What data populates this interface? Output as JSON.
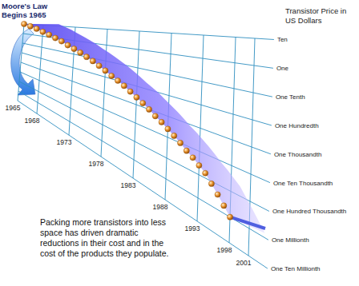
{
  "chart_data": {
    "type": "scatter",
    "title": "Moore's Law Begins 1965",
    "y_label": "Transistor Price in US Dollars",
    "annotation": "Packing more transistors into less space has driven dramatic reductions in their cost and in the cost of the products they populate.",
    "x": [
      1965,
      1966,
      1967,
      1968,
      1969,
      1970,
      1971,
      1972,
      1973,
      1974,
      1975,
      1976,
      1977,
      1978,
      1979,
      1980,
      1981,
      1982,
      1983,
      1984,
      1985,
      1986,
      1987,
      1988,
      1989,
      1990,
      1991,
      1992,
      1993,
      1994,
      1995,
      1996,
      1997,
      1998
    ],
    "values": [
      10,
      6.5,
      4.2,
      2.5,
      1.6,
      1.0,
      0.65,
      0.38,
      0.25,
      0.16,
      0.1,
      0.065,
      0.04,
      0.025,
      0.015,
      0.01,
      0.0065,
      0.004,
      0.0025,
      0.0016,
      0.001,
      0.0006,
      0.0004,
      0.00025,
      0.00016,
      0.0001,
      6e-05,
      4e-05,
      2.5e-05,
      1.6e-05,
      8e-06,
      4e-06,
      2e-06,
      1e-06
    ],
    "color": "#e8902a",
    "marker": "circle",
    "log": "y",
    "grid": true,
    "xlim": [
      1965,
      2001
    ],
    "xticks": [
      1965,
      1968,
      1973,
      1978,
      1983,
      1988,
      1993,
      1998,
      2001
    ],
    "ylim": [
      1e-07,
      10
    ],
    "yticks": [
      {
        "value": 10,
        "label": "Ten"
      },
      {
        "value": 1,
        "label": "One"
      },
      {
        "value": 0.1,
        "label": "One Tenth"
      },
      {
        "value": 0.01,
        "label": "One Hundredth"
      },
      {
        "value": 0.001,
        "label": "One Thousandth"
      },
      {
        "value": 0.0001,
        "label": "One Ten Thousandth"
      },
      {
        "value": 1e-05,
        "label": "One Hundred Thousandth"
      },
      {
        "value": 1e-06,
        "label": "One Millionth"
      },
      {
        "value": 1e-07,
        "label": "One Ten Millionth"
      }
    ]
  }
}
